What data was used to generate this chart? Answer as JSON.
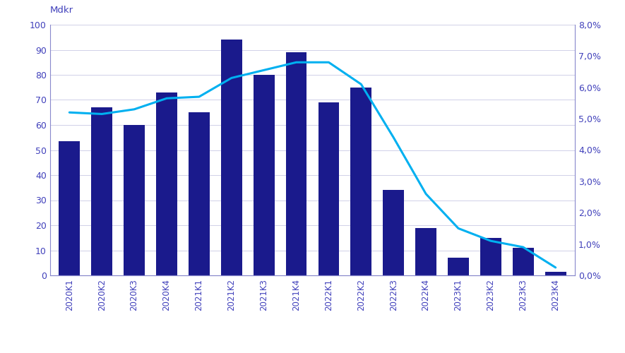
{
  "categories": [
    "2020K1",
    "2020K2",
    "2020K3",
    "2020K4",
    "2021K1",
    "2021K2",
    "2021K3",
    "2021K4",
    "2022K1",
    "2022K2",
    "2022K3",
    "2022K4",
    "2023K1",
    "2023K2",
    "2023K3",
    "2023K4"
  ],
  "bar_values": [
    53.5,
    67,
    60,
    73,
    65,
    94,
    80,
    89,
    69,
    75,
    34,
    19,
    7,
    15,
    11,
    1.5
  ],
  "line_values": [
    5.2,
    5.15,
    5.3,
    5.65,
    5.7,
    6.3,
    6.55,
    6.8,
    6.8,
    6.1,
    4.4,
    2.6,
    1.5,
    1.1,
    0.9,
    0.25
  ],
  "bar_color": "#1a1a8c",
  "line_color": "#00b0f0",
  "ylabel_left": "Mdkr",
  "ylim_left": [
    0,
    100
  ],
  "ylim_right": [
    0,
    8
  ],
  "yticks_left": [
    0,
    10,
    20,
    30,
    40,
    50,
    60,
    70,
    80,
    90,
    100
  ],
  "yticks_right": [
    0,
    1,
    2,
    3,
    4,
    5,
    6,
    7,
    8
  ],
  "ytick_labels_right": [
    "0,0%",
    "1,0%",
    "2,0%",
    "3,0%",
    "4,0%",
    "5,0%",
    "6,0%",
    "7,0%",
    "8,0%"
  ],
  "tick_color": "#4040bb",
  "axis_color": "#8888cc",
  "background_color": "#ffffff",
  "grid_color": "#d0d0e8"
}
